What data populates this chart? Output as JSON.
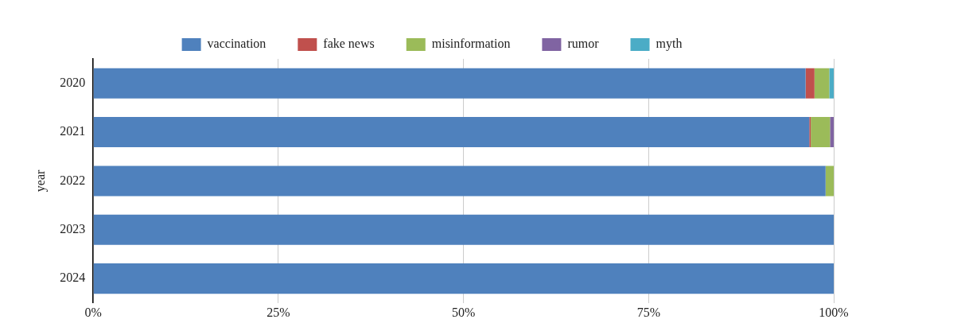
{
  "chart_data": {
    "type": "bar",
    "orientation": "horizontal",
    "stacked": true,
    "ylabel": "year",
    "categories": [
      "2020",
      "2021",
      "2022",
      "2023",
      "2024"
    ],
    "series": [
      {
        "name": "vaccination",
        "color": "#4f81bd",
        "values": [
          96.2,
          96.7,
          98.9,
          100,
          100
        ]
      },
      {
        "name": "fake news",
        "color": "#c0504d",
        "values": [
          1.2,
          0.2,
          0,
          0,
          0
        ]
      },
      {
        "name": "misinformation",
        "color": "#9bbb59",
        "values": [
          2.0,
          2.6,
          1.1,
          0,
          0
        ]
      },
      {
        "name": "rumor",
        "color": "#8064a2",
        "values": [
          0,
          0.5,
          0,
          0,
          0
        ]
      },
      {
        "name": "myth",
        "color": "#4bacc6",
        "values": [
          0.6,
          0,
          0,
          0,
          0
        ]
      }
    ],
    "xlim": [
      0,
      100
    ],
    "xticks": [
      {
        "value": 0,
        "label": "0%"
      },
      {
        "value": 25,
        "label": "25%"
      },
      {
        "value": 50,
        "label": "50%"
      },
      {
        "value": 75,
        "label": "75%"
      },
      {
        "value": 100,
        "label": "100%"
      }
    ],
    "grid": "x",
    "legend": "top"
  }
}
